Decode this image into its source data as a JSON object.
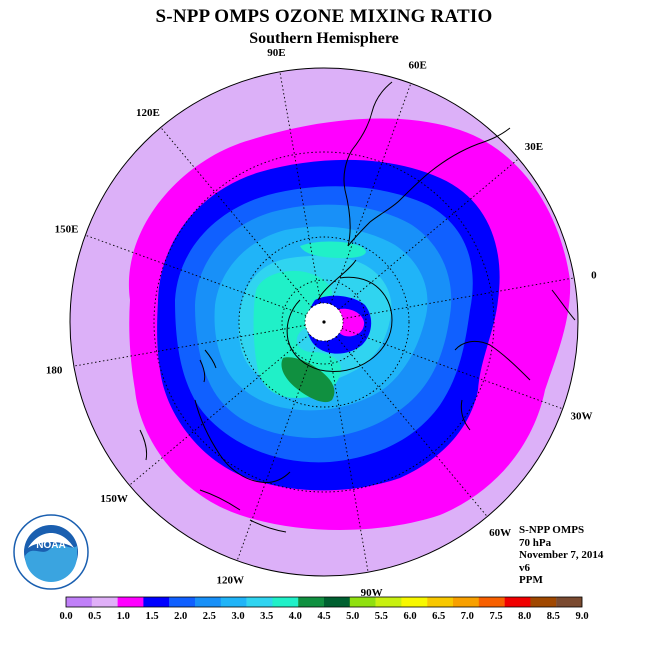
{
  "title": "S-NPP OMPS OZONE MIXING RATIO",
  "subtitle": "Southern Hemisphere",
  "info": {
    "instrument": "S-NPP OMPS",
    "level": "70 hPa",
    "date": "November 7, 2014",
    "version": "v6",
    "units": "PPM"
  },
  "logo": {
    "text": "NOAA"
  },
  "longitude_labels": [
    {
      "text": "90W",
      "lon": -90
    },
    {
      "text": "60W",
      "lon": -60
    },
    {
      "text": "30W",
      "lon": -30
    },
    {
      "text": "0",
      "lon": 0
    },
    {
      "text": "30E",
      "lon": 30
    },
    {
      "text": "60E",
      "lon": 60
    },
    {
      "text": "90E",
      "lon": 90
    },
    {
      "text": "120E",
      "lon": 120
    },
    {
      "text": "150E",
      "lon": 150
    },
    {
      "text": "180",
      "lon": 180
    },
    {
      "text": "150W",
      "lon": -150
    },
    {
      "text": "120W",
      "lon": -120
    }
  ],
  "colorbar": {
    "ticks": [
      "0.0",
      "0.5",
      "1.0",
      "1.5",
      "2.0",
      "2.5",
      "3.0",
      "3.5",
      "4.0",
      "4.5",
      "5.0",
      "5.5",
      "6.0",
      "6.5",
      "7.0",
      "7.5",
      "8.0",
      "8.5",
      "9.0"
    ],
    "colors": [
      "#c080f8",
      "#e0b0f8",
      "#ff00ff",
      "#0000ff",
      "#1060ff",
      "#1890f8",
      "#20b4f8",
      "#30d4f0",
      "#20f0c8",
      "#109040",
      "#006030",
      "#90e010",
      "#c8f010",
      "#f8f800",
      "#f8c800",
      "#f8a000",
      "#f86000",
      "#f00000",
      "#a04800",
      "#7a4a30"
    ]
  },
  "colors": {
    "background_outer": "#dcb0f8",
    "magenta": "#ff00ff",
    "blue": "#0000ff",
    "noaa_blue": "#1a5fb0"
  }
}
